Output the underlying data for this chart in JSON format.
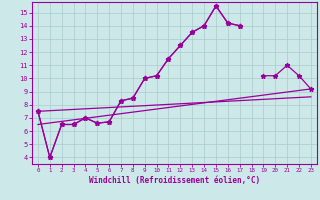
{
  "background_color": "#cce8e8",
  "grid_color": "#aacccc",
  "line_color": "#990099",
  "xlim": [
    -0.5,
    23.5
  ],
  "ylim": [
    3.5,
    15.8
  ],
  "xticks": [
    0,
    1,
    2,
    3,
    4,
    5,
    6,
    7,
    8,
    9,
    10,
    11,
    12,
    13,
    14,
    15,
    16,
    17,
    18,
    19,
    20,
    21,
    22,
    23
  ],
  "yticks": [
    4,
    5,
    6,
    7,
    8,
    9,
    10,
    11,
    12,
    13,
    14,
    15
  ],
  "xlabel": "Windchill (Refroidissement éolien,°C)",
  "series1_x": [
    0,
    1,
    2,
    3,
    4,
    5,
    6,
    7,
    8,
    9,
    10,
    11,
    12,
    13,
    14,
    15,
    16,
    17
  ],
  "series1_y": [
    7.5,
    4.0,
    6.5,
    6.5,
    7.0,
    6.6,
    6.7,
    8.3,
    8.5,
    10.0,
    10.2,
    11.5,
    12.5,
    13.5,
    14.0,
    15.5,
    14.2,
    14.0
  ],
  "series2_x": [
    0,
    1,
    2,
    3,
    4,
    5,
    6,
    7,
    8,
    9,
    10,
    11,
    12,
    13,
    14,
    15,
    16,
    17,
    19,
    20,
    21,
    22,
    23
  ],
  "series2_y": [
    7.5,
    4.0,
    6.5,
    6.5,
    7.0,
    6.6,
    6.7,
    8.3,
    8.5,
    10.0,
    10.2,
    11.5,
    12.5,
    13.5,
    14.0,
    15.5,
    14.2,
    14.0,
    10.2,
    10.2,
    11.0,
    10.2,
    9.2
  ],
  "trend1_x": [
    0,
    23
  ],
  "trend1_y": [
    6.5,
    9.2
  ],
  "trend2_x": [
    0,
    23
  ],
  "trend2_y": [
    7.5,
    8.6
  ],
  "marker": "*",
  "markersize": 3.5,
  "linewidth": 0.9
}
